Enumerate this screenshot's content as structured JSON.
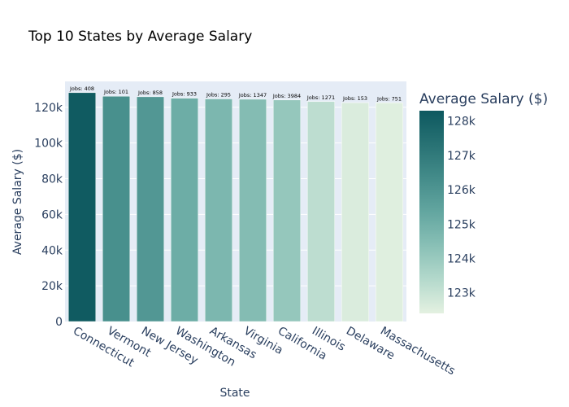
{
  "chart_data": {
    "type": "bar",
    "title": "Top 10 States by Average Salary",
    "xlabel": "State",
    "ylabel": "Average Salary ($)",
    "categories": [
      "Connecticut",
      "Vermont",
      "New Jersey",
      "Washington",
      "Arkansas",
      "Virginia",
      "California",
      "Illinois",
      "Delaware",
      "Massachusetts"
    ],
    "values": [
      128200,
      126200,
      125900,
      125100,
      124700,
      124500,
      124100,
      123200,
      122600,
      122500
    ],
    "bar_labels": [
      "Jobs: 408",
      "Jobs: 101",
      "Jobs: 858",
      "Jobs: 933",
      "Jobs: 295",
      "Jobs: 1347",
      "Jobs: 3984",
      "Jobs: 1271",
      "Jobs: 153",
      "Jobs: 751"
    ],
    "ylim": [
      0,
      134500
    ],
    "yticks": [
      0,
      20000,
      40000,
      60000,
      80000,
      100000,
      120000
    ],
    "ytick_labels": [
      "0",
      "20k",
      "40k",
      "60k",
      "80k",
      "100k",
      "120k"
    ],
    "grid": true,
    "colorscale": [
      "#e4f1e1",
      "#b4d9cc",
      "#89c0b6",
      "#63a6a0",
      "#448c8a",
      "#287274",
      "#0d585f"
    ],
    "colorbar": {
      "title": "Average Salary ($)",
      "range": [
        122400,
        128300
      ],
      "ticks": [
        123000,
        124000,
        125000,
        126000,
        127000,
        128000
      ],
      "tick_labels": [
        "123k",
        "124k",
        "125k",
        "126k",
        "127k",
        "128k"
      ]
    },
    "legend_placement": "right",
    "plot_background": "#e5ecf6"
  }
}
